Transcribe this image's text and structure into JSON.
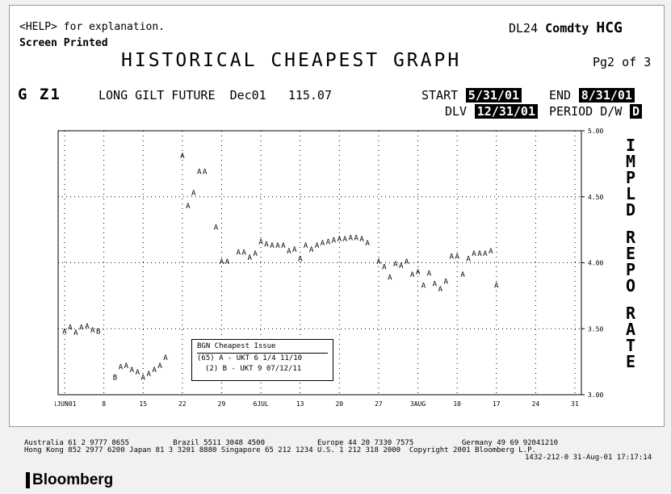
{
  "header": {
    "help": "<HELP> for explanation.",
    "printed": "Screen Printed",
    "security_code": "DL24",
    "security_type": "Comdty",
    "function": "HCG",
    "title": "HISTORICAL CHEAPEST GRAPH",
    "page": "Pg2 of 3"
  },
  "instrument": {
    "ticker": "G Z1",
    "name": "LONG GILT FUTURE",
    "contract": "Dec01",
    "price": "115.07"
  },
  "params": {
    "start_label": "START",
    "start_value": "5/31/01",
    "end_label": "END",
    "end_value": "8/31/01",
    "dlv_label": "DLV",
    "dlv_value": "12/31/01",
    "period_label": "PERIOD D/W",
    "period_value": "D"
  },
  "side_label": [
    "IMPLD",
    "REPO",
    "RATE"
  ],
  "legend": {
    "title": "BGN  Cheapest Issue",
    "entries": [
      "(65) A - UKT 6 1/4 11/10",
      "(2) B - UKT 9 07/12/11"
    ]
  },
  "chart_data": {
    "type": "scatter",
    "x_tick_labels": [
      "1JUN01",
      "8",
      "15",
      "22",
      "29",
      "6JUL",
      "13",
      "20",
      "27",
      "3AUG",
      "10",
      "17",
      "24",
      "31"
    ],
    "y_tick_labels": [
      "3.00",
      "3.50",
      "4.00",
      "4.50",
      "5.00"
    ],
    "ylim": [
      3.0,
      5.0
    ],
    "xlim": [
      0,
      91
    ],
    "grid": true,
    "points": [
      {
        "x": 0,
        "y": 3.48,
        "m": "A"
      },
      {
        "x": 1,
        "y": 3.51,
        "m": "A"
      },
      {
        "x": 2,
        "y": 3.47,
        "m": "A"
      },
      {
        "x": 3,
        "y": 3.51,
        "m": "A"
      },
      {
        "x": 4,
        "y": 3.52,
        "m": "A"
      },
      {
        "x": 5,
        "y": 3.49,
        "m": "A"
      },
      {
        "x": 6,
        "y": 3.48,
        "m": "B"
      },
      {
        "x": 9,
        "y": 3.13,
        "m": "B"
      },
      {
        "x": 10,
        "y": 3.21,
        "m": "A"
      },
      {
        "x": 11,
        "y": 3.22,
        "m": "A"
      },
      {
        "x": 12,
        "y": 3.19,
        "m": "A"
      },
      {
        "x": 13,
        "y": 3.17,
        "m": "A"
      },
      {
        "x": 14,
        "y": 3.13,
        "m": "A"
      },
      {
        "x": 15,
        "y": 3.16,
        "m": "A"
      },
      {
        "x": 16,
        "y": 3.19,
        "m": "A"
      },
      {
        "x": 17,
        "y": 3.22,
        "m": "A"
      },
      {
        "x": 18,
        "y": 3.28,
        "m": "A"
      },
      {
        "x": 21,
        "y": 4.81,
        "m": "A"
      },
      {
        "x": 22,
        "y": 4.43,
        "m": "A"
      },
      {
        "x": 23,
        "y": 4.53,
        "m": "A"
      },
      {
        "x": 24,
        "y": 4.69,
        "m": "A"
      },
      {
        "x": 25,
        "y": 4.69,
        "m": "A"
      },
      {
        "x": 27,
        "y": 4.27,
        "m": "A"
      },
      {
        "x": 28,
        "y": 4.01,
        "m": "A"
      },
      {
        "x": 29,
        "y": 4.01,
        "m": "A"
      },
      {
        "x": 31,
        "y": 4.08,
        "m": "A"
      },
      {
        "x": 32,
        "y": 4.08,
        "m": "A"
      },
      {
        "x": 33,
        "y": 4.04,
        "m": "A"
      },
      {
        "x": 34,
        "y": 4.07,
        "m": "A"
      },
      {
        "x": 35,
        "y": 4.16,
        "m": "A"
      },
      {
        "x": 36,
        "y": 4.14,
        "m": "A"
      },
      {
        "x": 37,
        "y": 4.13,
        "m": "A"
      },
      {
        "x": 38,
        "y": 4.13,
        "m": "A"
      },
      {
        "x": 39,
        "y": 4.13,
        "m": "A"
      },
      {
        "x": 40,
        "y": 4.09,
        "m": "A"
      },
      {
        "x": 41,
        "y": 4.1,
        "m": "A"
      },
      {
        "x": 42,
        "y": 4.03,
        "m": "A"
      },
      {
        "x": 43,
        "y": 4.13,
        "m": "A"
      },
      {
        "x": 44,
        "y": 4.1,
        "m": "A"
      },
      {
        "x": 45,
        "y": 4.13,
        "m": "A"
      },
      {
        "x": 46,
        "y": 4.15,
        "m": "A"
      },
      {
        "x": 47,
        "y": 4.16,
        "m": "A"
      },
      {
        "x": 48,
        "y": 4.17,
        "m": "A"
      },
      {
        "x": 49,
        "y": 4.18,
        "m": "A"
      },
      {
        "x": 50,
        "y": 4.18,
        "m": "A"
      },
      {
        "x": 51,
        "y": 4.19,
        "m": "A"
      },
      {
        "x": 52,
        "y": 4.19,
        "m": "A"
      },
      {
        "x": 53,
        "y": 4.18,
        "m": "A"
      },
      {
        "x": 54,
        "y": 4.15,
        "m": "A"
      },
      {
        "x": 56,
        "y": 4.01,
        "m": "A"
      },
      {
        "x": 57,
        "y": 3.97,
        "m": "A"
      },
      {
        "x": 58,
        "y": 3.89,
        "m": "A"
      },
      {
        "x": 59,
        "y": 3.99,
        "m": "A"
      },
      {
        "x": 60,
        "y": 3.98,
        "m": "A"
      },
      {
        "x": 61,
        "y": 4.01,
        "m": "A"
      },
      {
        "x": 62,
        "y": 3.91,
        "m": "A"
      },
      {
        "x": 63,
        "y": 3.93,
        "m": "A"
      },
      {
        "x": 64,
        "y": 3.83,
        "m": "A"
      },
      {
        "x": 65,
        "y": 3.92,
        "m": "A"
      },
      {
        "x": 66,
        "y": 3.84,
        "m": "A"
      },
      {
        "x": 67,
        "y": 3.8,
        "m": "A"
      },
      {
        "x": 68,
        "y": 3.86,
        "m": "A"
      },
      {
        "x": 69,
        "y": 4.05,
        "m": "A"
      },
      {
        "x": 70,
        "y": 4.05,
        "m": "A"
      },
      {
        "x": 71,
        "y": 3.91,
        "m": "A"
      },
      {
        "x": 72,
        "y": 4.03,
        "m": "A"
      },
      {
        "x": 73,
        "y": 4.07,
        "m": "A"
      },
      {
        "x": 74,
        "y": 4.07,
        "m": "A"
      },
      {
        "x": 75,
        "y": 4.07,
        "m": "A"
      },
      {
        "x": 76,
        "y": 4.09,
        "m": "A"
      },
      {
        "x": 77,
        "y": 3.83,
        "m": "A"
      }
    ]
  },
  "footer": {
    "line1": "Australia 61 2 9777 8655          Brazil 5511 3048 4500            Europe 44 20 7330 7575           Germany 49 69 92041210",
    "line2": "Hong Kong 852 2977 6200 Japan 81 3 3201 8880 Singapore 65 212 1234 U.S. 1 212 318 2000  Copyright 2001 Bloomberg L.P.",
    "line3": "1432-212-0 31-Aug-01 17:17:14",
    "logo": "Bloomberg"
  }
}
